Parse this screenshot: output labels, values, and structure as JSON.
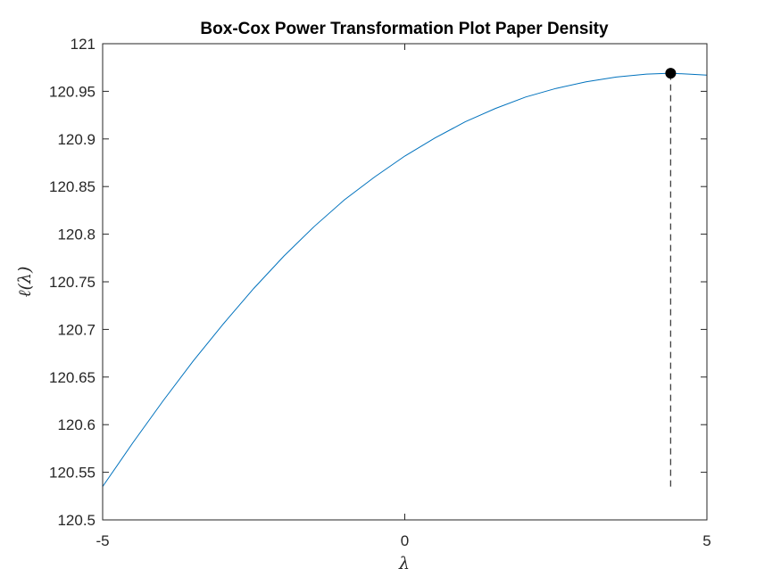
{
  "chart_data": {
    "type": "line",
    "title": "Box-Cox Power Transformation Plot Paper Density",
    "xlabel": "λ",
    "ylabel": "ℓ(λ)",
    "xlim": [
      -5,
      5
    ],
    "ylim": [
      120.5,
      121
    ],
    "xticks": [
      -5,
      0,
      5
    ],
    "xtick_labels": [
      "-5",
      "0",
      "5"
    ],
    "yticks": [
      120.5,
      120.55,
      120.6,
      120.65,
      120.7,
      120.75,
      120.8,
      120.85,
      120.9,
      120.95,
      121
    ],
    "ytick_labels": [
      "120.5",
      "120.55",
      "120.6",
      "120.65",
      "120.7",
      "120.75",
      "120.8",
      "120.85",
      "120.9",
      "120.95",
      "121"
    ],
    "grid": false,
    "series": [
      {
        "color": "#0072bd",
        "x": [
          -5,
          -4.5,
          -4,
          -3.5,
          -3,
          -2.5,
          -2,
          -1.5,
          -1,
          -0.5,
          0,
          0.5,
          1,
          1.5,
          2,
          2.5,
          3,
          3.5,
          4,
          4.4,
          4.7,
          5
        ],
        "y": [
          120.535,
          120.581,
          120.625,
          120.667,
          120.706,
          120.743,
          120.777,
          120.808,
          120.836,
          120.86,
          120.882,
          120.901,
          120.918,
          120.932,
          120.944,
          120.953,
          120.96,
          120.965,
          120.968,
          120.969,
          120.968,
          120.967
        ]
      }
    ],
    "maximum_point": {
      "x": 4.4,
      "y": 120.969,
      "color": "#000000"
    },
    "reference_line": {
      "x": 4.4,
      "y_from": 120.535,
      "y_to": 120.969,
      "style": "dashed",
      "color": "#404040"
    }
  }
}
